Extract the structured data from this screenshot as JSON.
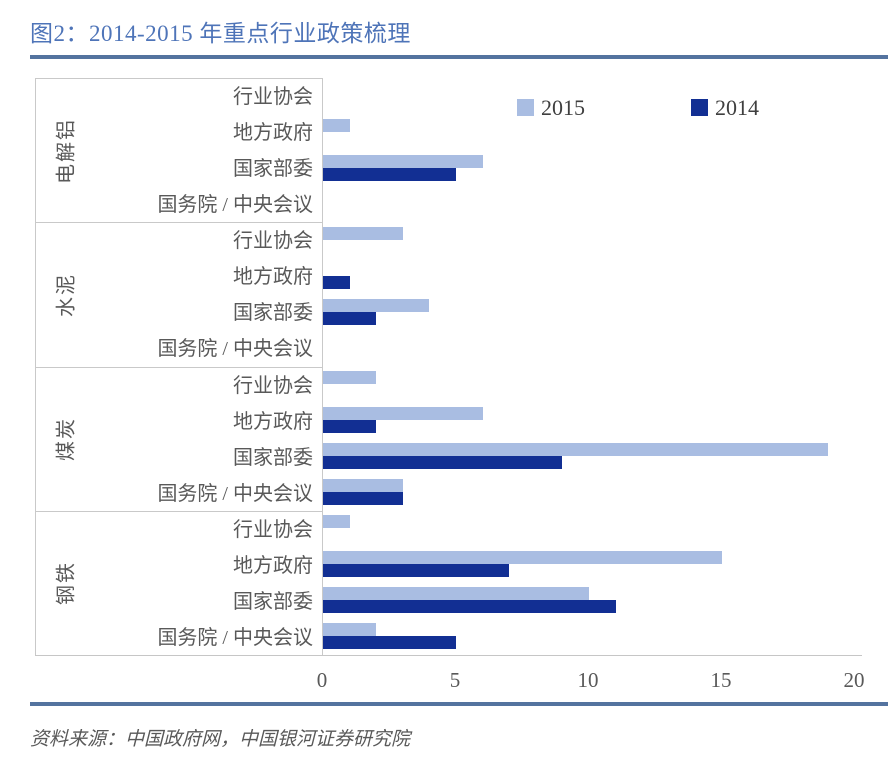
{
  "figure": {
    "title": "图2：2014-2015 年重点行业政策梳理",
    "source": "资料来源：中国政府网，中国银河证券研究院"
  },
  "colors": {
    "title_text": "#4E74B8",
    "accent_rule": "#54739F",
    "series_2015": "#A9BDE2",
    "series_2014": "#122F93",
    "axis_line": "#C9C9C9",
    "label_text": "#595959"
  },
  "chart_data": {
    "type": "bar",
    "orientation": "horizontal",
    "title": "图2：2014-2015 年重点行业政策梳理",
    "groups": [
      "电解铝",
      "水泥",
      "煤炭",
      "钢铁"
    ],
    "categories": [
      "行业协会",
      "地方政府",
      "国家部委",
      "国务院 / 中央会议"
    ],
    "series": [
      {
        "name": "2015",
        "color": "#A9BDE2",
        "values": [
          [
            0,
            1,
            6,
            0
          ],
          [
            3,
            0,
            4,
            0
          ],
          [
            2,
            6,
            19,
            3
          ],
          [
            1,
            15,
            10,
            2
          ]
        ]
      },
      {
        "name": "2014",
        "color": "#122F93",
        "values": [
          [
            0,
            0,
            5,
            0
          ],
          [
            0,
            1,
            2,
            0
          ],
          [
            0,
            2,
            9,
            3
          ],
          [
            0,
            7,
            11,
            5
          ]
        ]
      }
    ],
    "xlim": [
      0,
      20
    ],
    "xticks": [
      0,
      5,
      10,
      15,
      20
    ],
    "grid": false,
    "legend_position": "top-right-inside"
  }
}
